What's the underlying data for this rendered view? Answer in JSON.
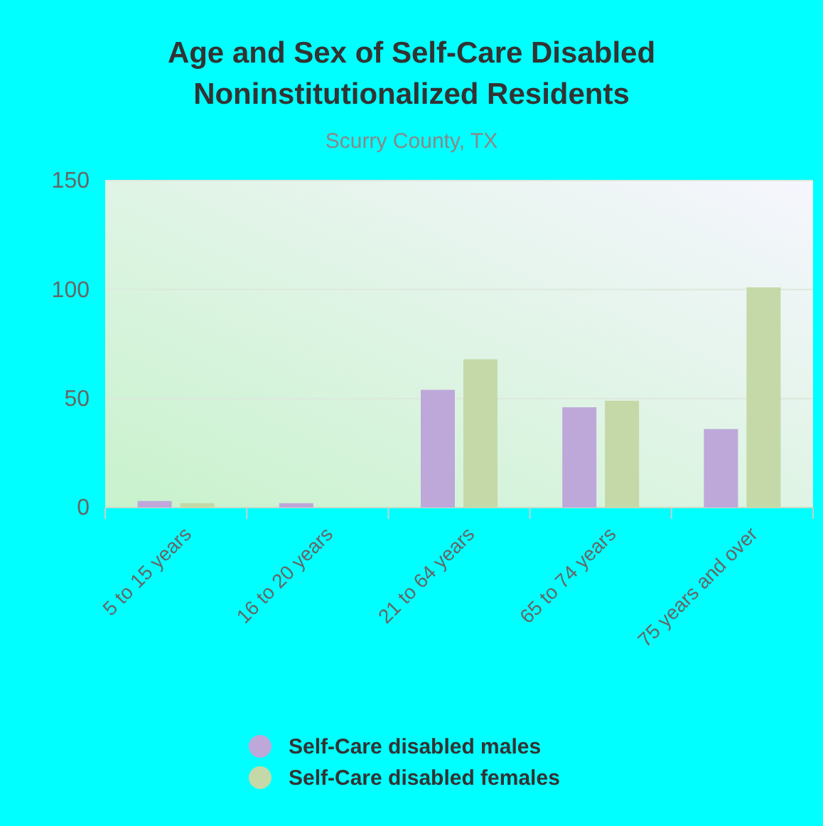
{
  "chart_data": {
    "type": "bar",
    "title": "Age and Sex of Self-Care Disabled Noninstitutionalized Residents",
    "subtitle": "Scurry County, TX",
    "categories": [
      "5 to 15 years",
      "16 to 20 years",
      "21 to 64 years",
      "65 to 74 years",
      "75 years and over"
    ],
    "series": [
      {
        "name": "Self-Care disabled males",
        "color": "#bea8da",
        "values": [
          3,
          2,
          54,
          46,
          36
        ]
      },
      {
        "name": "Self-Care disabled females",
        "color": "#c4d9a7",
        "values": [
          2,
          null,
          68,
          49,
          101
        ]
      }
    ],
    "ylim": [
      0,
      150
    ],
    "yticks": [
      0,
      50,
      100,
      150
    ],
    "grid": "y",
    "legend": "bottom"
  }
}
